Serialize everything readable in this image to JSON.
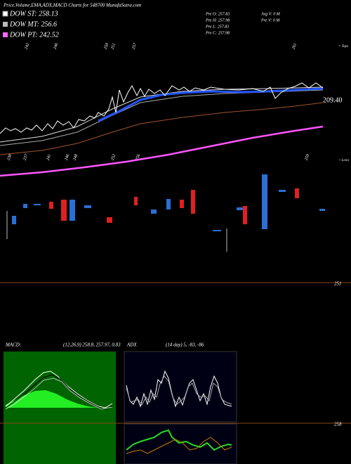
{
  "header": {
    "title": "Price,Volume,EMA,ADX,MACD Charts for 548700  MunafaSutra.com"
  },
  "legend": [
    "DOW ST: 258.13",
    "DOW MT: 256.6",
    "DOW PT: 242.52"
  ],
  "info": [
    "Pre  O: 257.83",
    "Pre  H: 257.98",
    "Pre  L: 257.83",
    "Pre  C: 257.98",
    "Avg V: 0  M",
    "Pre  V: 0  M"
  ],
  "top_labels": [
    "242",
    "246",
    "250",
    "251",
    "257",
    "261"
  ],
  "tops": "< Tops",
  "price_label": "209.40",
  "low_labels": [
    "238",
    "237",
    "241",
    "246",
    "248",
    "252",
    "256",
    "259"
  ],
  "lows": "< Lows",
  "level_label": "251",
  "macd": {
    "label": "MACD:",
    "params": "(12,26,9) 258.8, 257.97, 0.83"
  },
  "adx": {
    "label": "ADX",
    "params": "(14  day) 5, -83, -86"
  },
  "lower_label": "258"
}
